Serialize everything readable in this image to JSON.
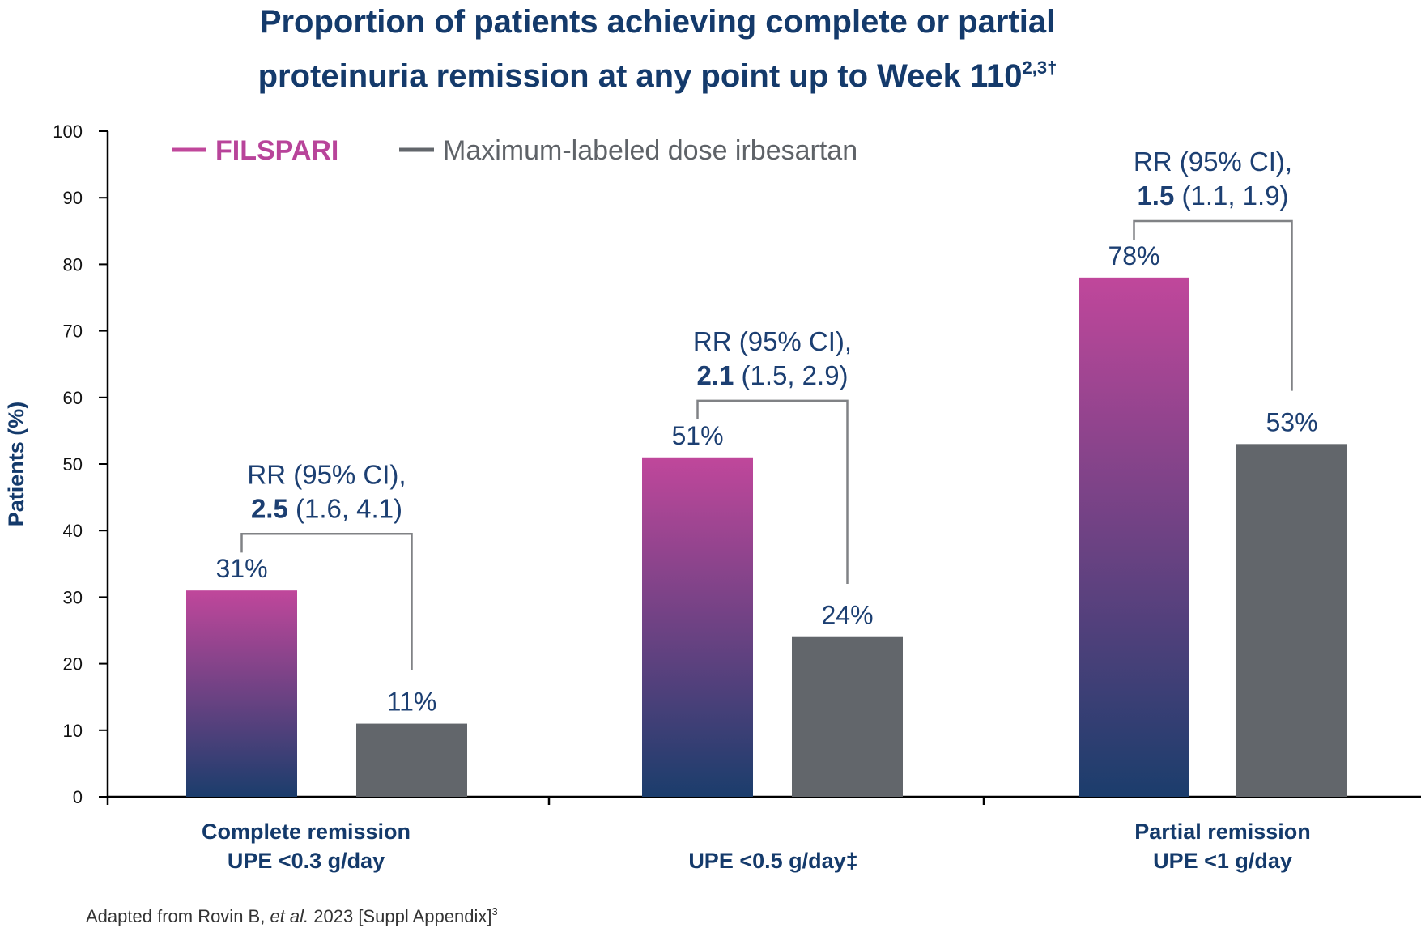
{
  "title_line1": "Proportion of patients achieving complete or partial",
  "title_line2": "proteinuria remission at any point up to Week 110",
  "title_sup": "2,3†",
  "colors": {
    "filspari_top": "#c0479b",
    "filspari_bottom": "#1b3d6c",
    "irbesartan": "#62666b",
    "navy": "#143a6b",
    "bracket": "#808285"
  },
  "source": {
    "prefix": "Adapted from Rovin B, ",
    "italic": "et al.",
    "suffix": " 2023 [Suppl Appendix]",
    "sup": "3"
  },
  "chart_data": {
    "type": "bar",
    "ylabel": "Patients (%)",
    "ylim": [
      0,
      100
    ],
    "yticks": [
      0,
      10,
      20,
      30,
      40,
      50,
      60,
      70,
      80,
      90,
      100
    ],
    "legend_position": "top-left",
    "grid": false,
    "categories": [
      {
        "lines": [
          "Complete remission",
          "UPE <0.3 g/day"
        ]
      },
      {
        "lines": [
          "UPE <0.5 g/day‡"
        ]
      },
      {
        "lines": [
          "Partial remission",
          "UPE <1 g/day"
        ]
      }
    ],
    "series": [
      {
        "name": "FILSPARI",
        "values": [
          31,
          51,
          78
        ],
        "labels": [
          "31%",
          "51%",
          "78%"
        ]
      },
      {
        "name": "Maximum-labeled dose irbesartan",
        "values": [
          11,
          24,
          53
        ],
        "labels": [
          "11%",
          "24%",
          "53%"
        ]
      }
    ],
    "annotations": [
      {
        "line1": "RR (95% CI),",
        "bold": "2.5",
        "rest": " (1.6, 4.1)"
      },
      {
        "line1": "RR (95% CI),",
        "bold": "2.1",
        "rest": " (1.5, 2.9)"
      },
      {
        "line1": "RR (95% CI),",
        "bold": "1.5",
        "rest": " (1.1, 1.9)"
      }
    ]
  }
}
